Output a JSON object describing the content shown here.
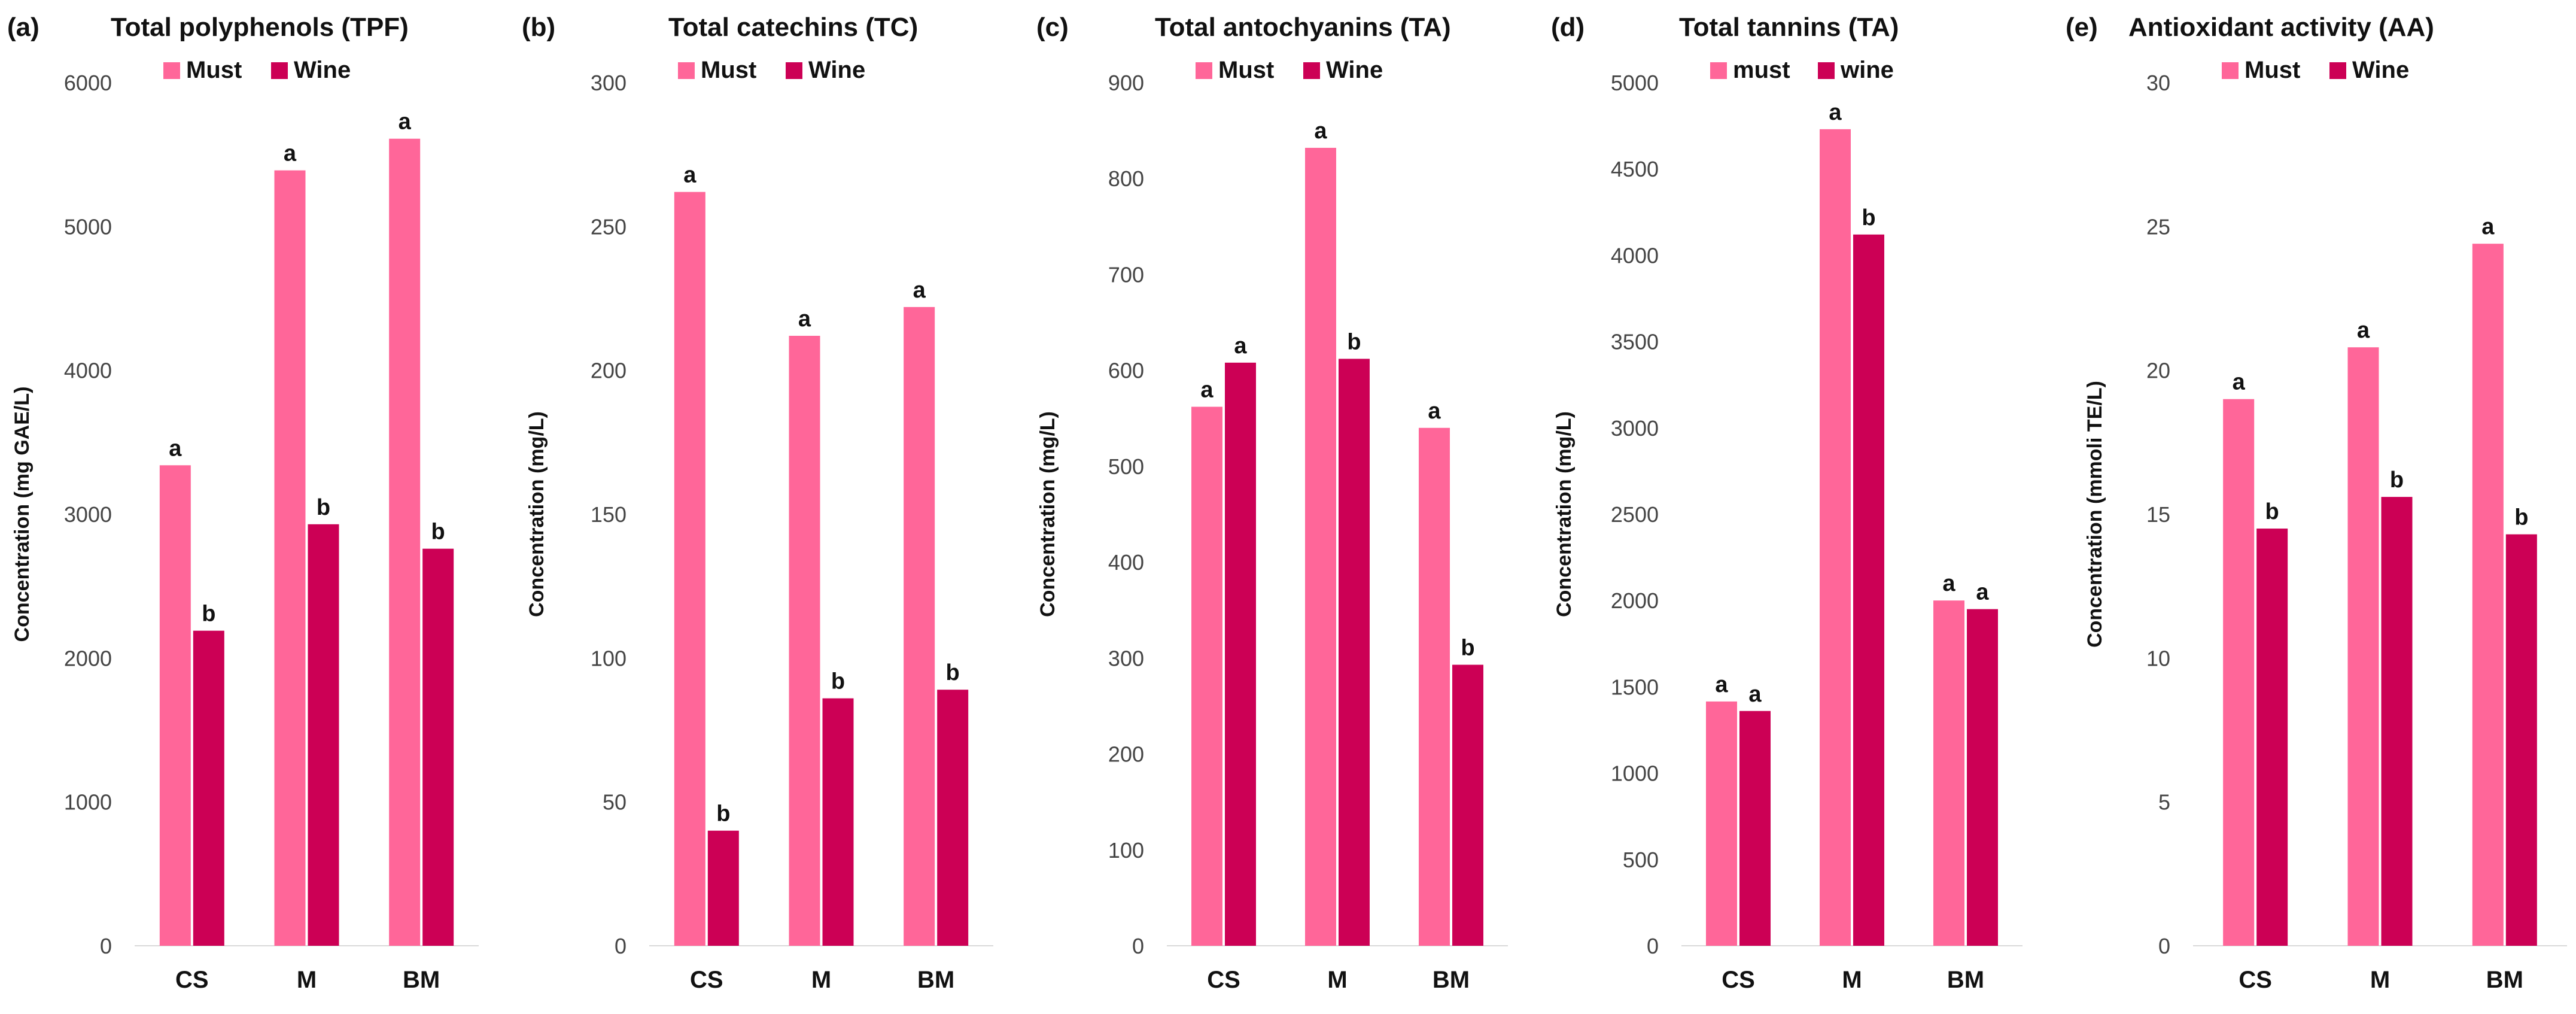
{
  "colors": {
    "must": "#ff6699",
    "wine": "#cc0055"
  },
  "chart_data": [
    {
      "type": "bar",
      "panel": "(a)",
      "title": "Total polyphenols (TPF)",
      "ylabel": "Concentration (mg GAE/L)",
      "xlabel": "",
      "ylim": [
        0,
        6000
      ],
      "yticks": [
        0,
        1000,
        2000,
        3000,
        4000,
        5000,
        6000
      ],
      "categories": [
        "CS",
        "M",
        "BM"
      ],
      "series": [
        {
          "name": "Must",
          "values": [
            3340,
            5390,
            5610
          ],
          "labels": [
            "a",
            "a",
            "a"
          ]
        },
        {
          "name": "Wine",
          "values": [
            2190,
            2930,
            2760
          ],
          "labels": [
            "b",
            "b",
            "b"
          ]
        }
      ]
    },
    {
      "type": "bar",
      "panel": "(b)",
      "title": "Total catechins (TC)",
      "ylabel": "Concentration (mg/L)",
      "xlabel": "",
      "ylim": [
        0,
        300
      ],
      "yticks": [
        0,
        50,
        100,
        150,
        200,
        250,
        300
      ],
      "categories": [
        "CS",
        "M",
        "BM"
      ],
      "series": [
        {
          "name": "Must",
          "values": [
            262,
            212,
            222
          ],
          "labels": [
            "a",
            "a",
            "a"
          ]
        },
        {
          "name": "Wine",
          "values": [
            40,
            86,
            89
          ],
          "labels": [
            "b",
            "b",
            "b"
          ]
        }
      ]
    },
    {
      "type": "bar",
      "panel": "(c)",
      "title": "Total antochyanins (TA)",
      "ylabel": "Concentration (mg/L)",
      "xlabel": "",
      "ylim": [
        0,
        900
      ],
      "yticks": [
        0,
        100,
        200,
        300,
        400,
        500,
        600,
        700,
        800,
        900
      ],
      "categories": [
        "CS",
        "M",
        "BM"
      ],
      "series": [
        {
          "name": "Must",
          "values": [
            562,
            832,
            540
          ],
          "labels": [
            "a",
            "a",
            "a"
          ]
        },
        {
          "name": "Wine",
          "values": [
            608,
            612,
            293
          ],
          "labels": [
            "a",
            "b",
            "b"
          ]
        }
      ]
    },
    {
      "type": "bar",
      "panel": "(d)",
      "title": "Total tannins (TA)",
      "ylabel": "Concentration (mg/L)",
      "xlabel": "",
      "ylim": [
        0,
        5000
      ],
      "yticks": [
        0,
        500,
        1000,
        1500,
        2000,
        2500,
        3000,
        3500,
        4000,
        4500,
        5000
      ],
      "categories": [
        "CS",
        "M",
        "BM"
      ],
      "series": [
        {
          "name": "must",
          "values": [
            1415,
            4730,
            2000
          ],
          "labels": [
            "a",
            "a",
            "a"
          ]
        },
        {
          "name": "wine",
          "values": [
            1360,
            4120,
            1950
          ],
          "labels": [
            "a",
            "b",
            "a"
          ]
        }
      ]
    },
    {
      "type": "bar",
      "panel": "(e)",
      "title": "Antioxidant activity (AA)",
      "ylabel": "Concentration (mmoli TE/L)",
      "xlabel": "",
      "ylim": [
        0,
        30
      ],
      "yticks": [
        0,
        5,
        10,
        15,
        20,
        25,
        30
      ],
      "categories": [
        "CS",
        "M",
        "BM"
      ],
      "series": [
        {
          "name": "Must",
          "values": [
            19.0,
            20.8,
            24.4
          ],
          "labels": [
            "a",
            "a",
            "a"
          ]
        },
        {
          "name": "Wine",
          "values": [
            14.5,
            15.6,
            14.3
          ],
          "labels": [
            "b",
            "b",
            "b"
          ]
        }
      ]
    }
  ]
}
